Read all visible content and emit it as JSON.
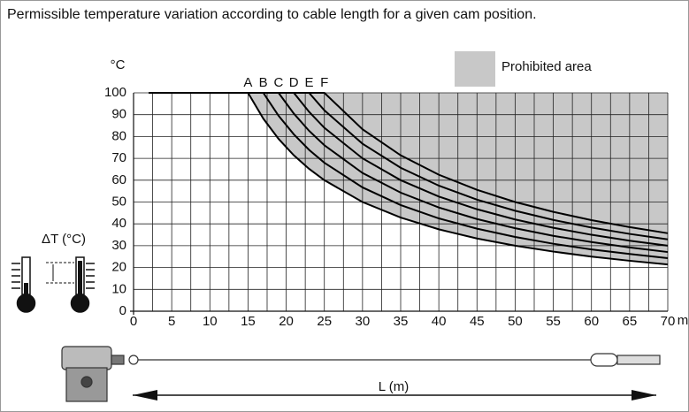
{
  "chart_data": {
    "type": "line",
    "title": "Permissible temperature variation according to cable length for a given cam position.",
    "y_unit": "°C",
    "x_unit": "m",
    "side_label": "ΔT (°C)",
    "length_label": "L (m)",
    "legend": {
      "label": "Prohibited area",
      "color": "#c8c8c8",
      "position": "top-right"
    },
    "x": [
      2,
      15,
      17,
      19,
      21,
      23,
      25,
      30,
      35,
      40,
      45,
      50,
      55,
      60,
      65,
      70
    ],
    "series": [
      {
        "name": "A",
        "color": "#000000",
        "values": [
          100,
          100,
          88.2,
          78.9,
          71.4,
          65.2,
          60,
          50,
          42.9,
          37.5,
          33.3,
          30,
          27.3,
          25,
          23.1,
          21.4
        ]
      },
      {
        "name": "B",
        "color": "#000000",
        "values": [
          100,
          100,
          100,
          89.5,
          81,
          73.9,
          68,
          56.7,
          48.6,
          42.5,
          37.8,
          34,
          30.9,
          28.3,
          26.2,
          24.3
        ]
      },
      {
        "name": "C",
        "color": "#000000",
        "values": [
          100,
          100,
          100,
          100,
          90.5,
          82.6,
          76,
          63.3,
          54.3,
          47.5,
          42.2,
          38,
          34.5,
          31.7,
          29.2,
          27.1
        ]
      },
      {
        "name": "D",
        "color": "#000000",
        "values": [
          100,
          100,
          100,
          100,
          100,
          91.3,
          84,
          70,
          60,
          52.5,
          46.7,
          42,
          38.2,
          35,
          32.3,
          30
        ]
      },
      {
        "name": "E",
        "color": "#000000",
        "values": [
          100,
          100,
          100,
          100,
          100,
          100,
          92,
          76.7,
          65.7,
          57.5,
          51.1,
          46,
          41.8,
          38.3,
          35.4,
          32.9
        ]
      },
      {
        "name": "F",
        "color": "#000000",
        "values": [
          100,
          100,
          100,
          100,
          100,
          100,
          100,
          83.3,
          71.4,
          62.5,
          55.6,
          50,
          45.5,
          41.7,
          38.5,
          35.7
        ]
      }
    ],
    "xlim": [
      0,
      70
    ],
    "xticks": [
      0,
      5,
      10,
      15,
      20,
      25,
      30,
      35,
      40,
      45,
      50,
      55,
      60,
      65,
      70
    ],
    "x_minor_ticks": [
      2.5,
      7.5,
      12.5,
      17.5,
      22.5,
      27.5,
      32.5,
      37.5,
      42.5,
      47.5,
      52.5,
      57.5,
      62.5,
      67.5
    ],
    "ylim": [
      0,
      100
    ],
    "yticks": [
      0,
      10,
      20,
      30,
      40,
      50,
      60,
      70,
      80,
      90,
      100
    ],
    "grid": true
  }
}
